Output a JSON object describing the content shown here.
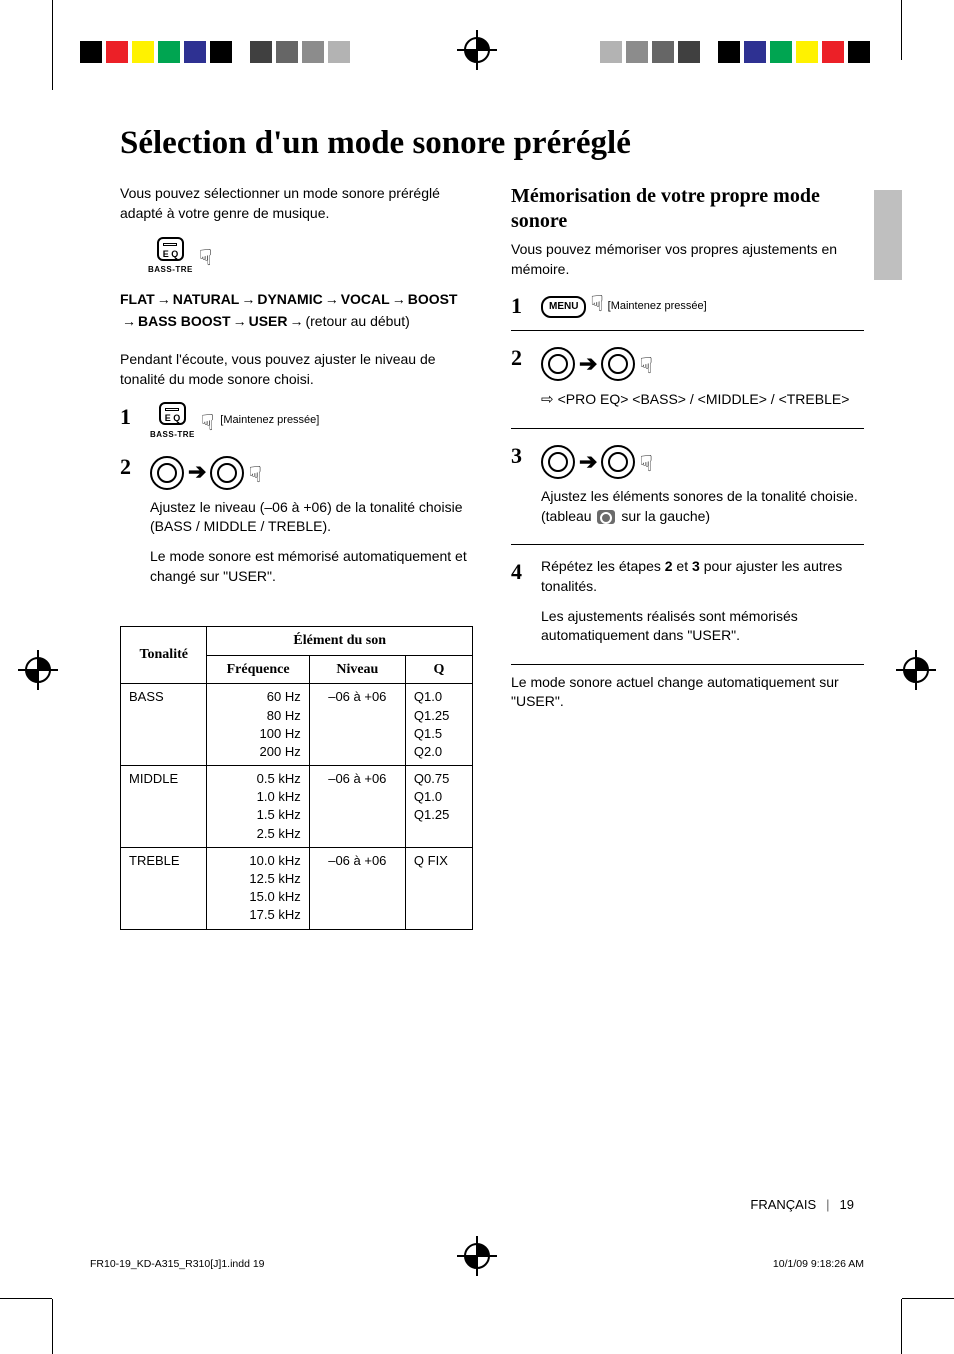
{
  "reg_colors_left": [
    "#000000",
    "#ec2027",
    "#fff200",
    "#00a551",
    "#2e3192",
    "#000000"
  ],
  "reg_colors_right": [
    "#000000",
    "#2e3192",
    "#00a551",
    "#fff200",
    "#ec2027",
    "#000000"
  ],
  "reg_grays": [
    "#404040",
    "#666666",
    "#8c8c8c",
    "#b3b3b3"
  ],
  "title": "Sélection d'un mode sonore préréglé",
  "left": {
    "intro": "Vous pouvez sélectionner un mode sonore préréglé adapté à votre genre de musique.",
    "eq_button": {
      "line1": "E Q",
      "sub": "BASS-TRE"
    },
    "chain_items": [
      "FLAT",
      "NATURAL",
      "DYNAMIC",
      "VOCAL",
      "BOOST",
      "BASS BOOST",
      "USER"
    ],
    "chain_tail": "(retour au début)",
    "mid": "Pendant l'écoute, vous pouvez ajuster le niveau de tonalité du mode sonore choisi.",
    "step1_note": "[Maintenez pressée]",
    "step2_a": "Ajustez le niveau (–06 à +06) de la tonalité choisie (BASS / MIDDLE / TREBLE).",
    "step2_b": "Le mode sonore est mémorisé automatiquement et changé sur \"USER\"."
  },
  "right": {
    "heading": "Mémorisation de votre propre mode sonore",
    "intro": "Vous pouvez mémoriser vos propres ajustements en mémoire.",
    "menu_label": "MENU",
    "step1_note": "[Maintenez pressée]",
    "step2_text": "<PRO EQ> ⇨ <BASS> / <MIDDLE> / <TREBLE>",
    "step3_a": "Ajustez les éléments sonores de la tonalité choisie. (tableau",
    "step3_b": "sur la gauche)",
    "step4_a": "Répétez les étapes ",
    "step4_b": " et ",
    "step4_c": " pour ajuster les autres tonalités.",
    "step4_d": "Les ajustements réalisés sont mémorisés automatiquement dans \"USER\".",
    "bold2": "2",
    "bold3": "3",
    "tail": "Le mode sonore actuel change automatiquement sur \"USER\"."
  },
  "table": {
    "h_tonalite": "Tonalité",
    "h_element": "Élément du son",
    "h_freq": "Fréquence",
    "h_niv": "Niveau",
    "h_q": "Q",
    "rows": [
      {
        "name": "BASS",
        "freq": "60 Hz\n80 Hz\n100 Hz\n200 Hz",
        "niv": "–06 à +06",
        "q": "Q1.0\nQ1.25\nQ1.5\nQ2.0"
      },
      {
        "name": "MIDDLE",
        "freq": "0.5 kHz\n1.0 kHz\n1.5 kHz\n2.5 kHz",
        "niv": "–06 à +06",
        "q": "Q0.75\nQ1.0\nQ1.25"
      },
      {
        "name": "TREBLE",
        "freq": "10.0 kHz\n12.5 kHz\n15.0 kHz\n17.5 kHz",
        "niv": "–06 à +06",
        "q": "Q FIX"
      }
    ]
  },
  "footer": {
    "lang": "FRANÇAIS",
    "page": "19"
  },
  "imprint": {
    "file": "FR10-19_KD-A315_R310[J]1.indd   19",
    "stamp": "10/1/09   9:18:26 AM"
  }
}
